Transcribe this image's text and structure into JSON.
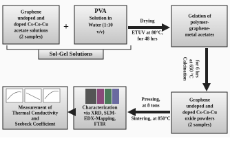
{
  "nodes": [
    {
      "label": [
        "Graphene",
        "undoped and",
        "doped Cs-Co-Cu",
        "acetate solutions",
        "(2 samples)"
      ]
    },
    {
      "label": [
        "PVA",
        "Solution in",
        "Water (1:10",
        "v/v)"
      ]
    },
    {
      "label": [
        "Gelation of",
        "polymer-",
        "graphene-",
        "metal acetates"
      ]
    },
    {
      "label": [
        "Graphene",
        "undoped and",
        "doped Cs-Co-Cu",
        "oxide powders",
        "(2 samples)"
      ]
    },
    {
      "label": [
        "Characterization",
        "via XRD, SEM-",
        "EDX-Mapping,",
        "FTIR"
      ]
    },
    {
      "label": [
        "Measurement of",
        "Thermal Conductivity",
        "and",
        "Seebeck Coefficient"
      ]
    }
  ],
  "operator": "+",
  "group_label": "Sol-Gel Solutions",
  "edges": [
    {
      "label": [
        "Drying",
        "ETUV at 80°C,",
        "for 48 hrs"
      ]
    },
    {
      "label": [
        "Calcination",
        "at 650 °C",
        "for 6 hrs"
      ]
    },
    {
      "label": [
        "Pressing,",
        "at 8 tons",
        "Sintering, at 850°C"
      ]
    }
  ]
}
